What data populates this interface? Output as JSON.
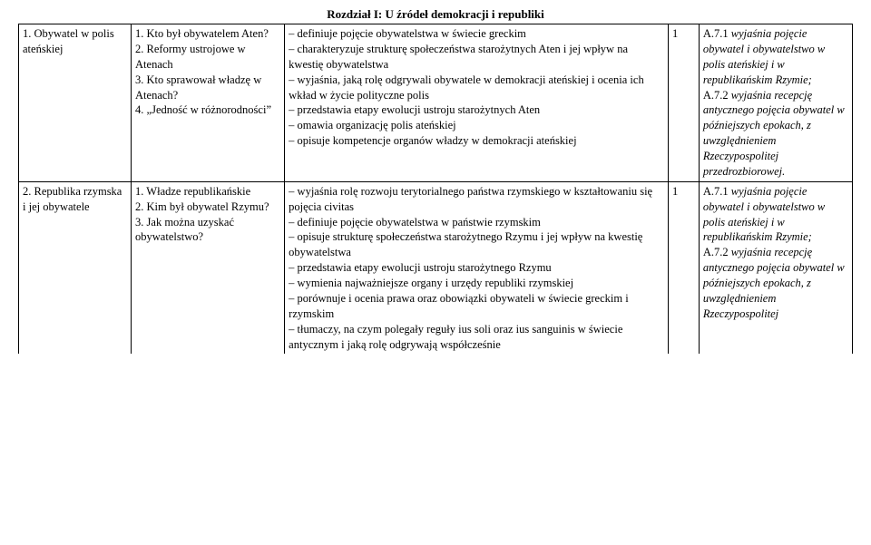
{
  "title": "Rozdział I: U źródeł demokracji i republiki",
  "rows": [
    {
      "col1": "1. Obywatel w polis ateńskiej",
      "col2": "1. Kto był obywatelem Aten?\n2. Reformy ustrojowe w Atenach\n3. Kto sprawował władzę w Atenach?\n4. „Jedność w różnorodności”",
      "col3": "– definiuje pojęcie obywatelstwa w świecie greckim\n– charakteryzuje strukturę społeczeństwa starożytnych Aten i jej wpływ na kwestię obywatelstwa\n– wyjaśnia, jaką rolę odgrywali obywatele w demokracji ateńskiej i ocenia ich wkład w życie polityczne polis\n– przedstawia etapy ewolucji ustroju starożytnych Aten\n– omawia organizację polis ateńskiej\n– opisuje kompetencje organów władzy w demokracji ateńskiej",
      "col4": "1",
      "col5_plain1": "A.7.1 ",
      "col5_italic1": "wyjaśnia pojęcie obywatel i obywatelstwo w polis ateńskiej i w republikańskim Rzymie;",
      "col5_break1": "\n",
      "col5_plain2": "A.7.2 ",
      "col5_italic2": "wyjaśnia recepcję antycznego pojęcia obywatel w późniejszych epokach, z uwzględnieniem Rzeczypospolitej przedrozbiorowej."
    },
    {
      "col1": "2. Republika rzymska i jej obywatele",
      "col2": "1. Władze republikańskie\n2. Kim był obywatel Rzymu?\n3. Jak można uzyskać obywatelstwo?",
      "col3": "– wyjaśnia rolę rozwoju terytorialnego państwa rzymskiego w kształtowaniu się pojęcia civitas\n– definiuje pojęcie obywatelstwa w państwie rzymskim\n– opisuje strukturę społeczeństwa starożytnego Rzymu i jej wpływ na kwestię obywatelstwa\n– przedstawia etapy ewolucji ustroju starożytnego Rzymu\n– wymienia najważniejsze organy i urzędy republiki rzymskiej\n– porównuje i ocenia prawa oraz obowiązki obywateli w świecie greckim i rzymskim\n– tłumaczy, na czym polegały reguły ius soli oraz ius sanguinis w świecie antycznym i jaką rolę odgrywają współcześnie",
      "col4": "1",
      "col5_plain1": "A.7.1 ",
      "col5_italic1": "wyjaśnia pojęcie obywatel i obywatelstwo w polis ateńskiej i w republikańskim Rzymie;",
      "col5_break1": "\n",
      "col5_plain2": "A.7.2 ",
      "col5_italic2": "wyjaśnia recepcję antycznego pojęcia obywatel w późniejszych epokach, z uwzględnieniem Rzeczypospolitej"
    }
  ]
}
